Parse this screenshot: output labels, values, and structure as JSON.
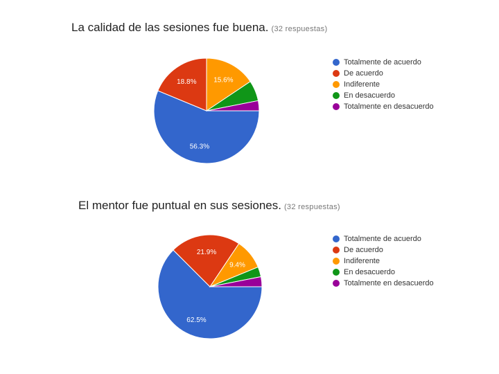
{
  "chart_data": [
    {
      "type": "pie",
      "title": "La calidad de las sesiones fue buena.",
      "subtitle": "(32 respuestas)",
      "legend_position": "right",
      "categories": [
        "Totalmente de acuerdo",
        "De acuerdo",
        "Indiferente",
        "En desacuerdo",
        "Totalmente en desacuerdo"
      ],
      "values": [
        56.3,
        18.8,
        15.6,
        6.3,
        3.1
      ],
      "labels": [
        "56.3%",
        "18.8%",
        "15.6%",
        "",
        ""
      ],
      "colors": [
        "#3366cc",
        "#dc3912",
        "#ff9900",
        "#109618",
        "#990099"
      ]
    },
    {
      "type": "pie",
      "title": "El mentor fue puntual en sus sesiones.",
      "subtitle": "(32 respuestas)",
      "legend_position": "right",
      "categories": [
        "Totalmente de acuerdo",
        "De acuerdo",
        "Indiferente",
        "En desacuerdo",
        "Totalmente en desacuerdo"
      ],
      "values": [
        62.5,
        21.9,
        9.4,
        3.1,
        3.1
      ],
      "labels": [
        "62.5%",
        "21.9%",
        "9.4%",
        "",
        ""
      ],
      "colors": [
        "#3366cc",
        "#dc3912",
        "#ff9900",
        "#109618",
        "#990099"
      ]
    }
  ]
}
